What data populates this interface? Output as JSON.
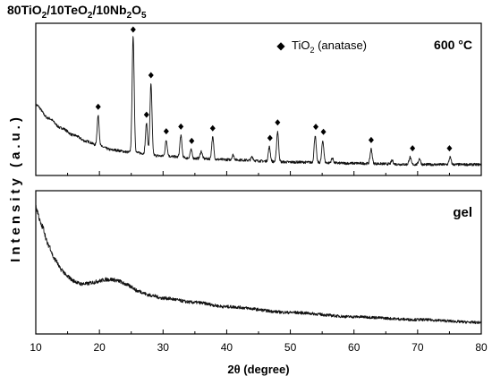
{
  "chart_data": {
    "type": "line",
    "title_parts": [
      "80TiO",
      "2",
      "/10TeO",
      "2",
      "/10Nb",
      "2",
      "O",
      "5"
    ],
    "xlabel": "2θ (degree)",
    "ylabel": "Intensity (a.u.)",
    "xlim": [
      10,
      80
    ],
    "x_ticks": [
      "10",
      "20",
      "30",
      "40",
      "50",
      "60",
      "70",
      "80"
    ],
    "grid": false,
    "panels": [
      {
        "label": "600 °C",
        "legend": {
          "marker": "◆",
          "text_parts": [
            "TiO",
            "2",
            " (anatase)"
          ],
          "position": "top-right"
        },
        "series": {
          "baseline": [
            [
              10,
              0.58
            ],
            [
              12,
              0.47
            ],
            [
              14,
              0.39
            ],
            [
              16,
              0.33
            ],
            [
              18,
              0.28
            ],
            [
              20,
              0.24
            ],
            [
              22,
              0.21
            ],
            [
              25,
              0.19
            ],
            [
              30,
              0.16
            ],
            [
              35,
              0.14
            ],
            [
              40,
              0.13
            ],
            [
              50,
              0.11
            ],
            [
              60,
              0.1
            ],
            [
              70,
              0.09
            ],
            [
              80,
              0.09
            ]
          ],
          "peaks": [
            {
              "x": 19.8,
              "height": 0.25
            },
            {
              "x": 25.3,
              "height": 0.95
            },
            {
              "x": 27.4,
              "height": 0.25
            },
            {
              "x": 28.1,
              "height": 0.58
            },
            {
              "x": 30.5,
              "height": 0.13
            },
            {
              "x": 32.8,
              "height": 0.18
            },
            {
              "x": 34.4,
              "height": 0.07
            },
            {
              "x": 36.0,
              "height": 0.06
            },
            {
              "x": 37.8,
              "height": 0.18
            },
            {
              "x": 41.0,
              "height": 0.04
            },
            {
              "x": 44.0,
              "height": 0.03
            },
            {
              "x": 46.7,
              "height": 0.12
            },
            {
              "x": 48.0,
              "height": 0.25
            },
            {
              "x": 53.9,
              "height": 0.22
            },
            {
              "x": 55.1,
              "height": 0.18
            },
            {
              "x": 56.6,
              "height": 0.04
            },
            {
              "x": 62.7,
              "height": 0.12
            },
            {
              "x": 66.0,
              "height": 0.03
            },
            {
              "x": 68.8,
              "height": 0.06
            },
            {
              "x": 70.3,
              "height": 0.05
            },
            {
              "x": 75.1,
              "height": 0.06
            }
          ],
          "ymax": 1.25
        },
        "markers_x": [
          19.8,
          25.3,
          27.4,
          28.1,
          30.5,
          32.8,
          34.5,
          37.8,
          46.8,
          48.0,
          54.0,
          55.2,
          62.7,
          69.2,
          75.0
        ]
      },
      {
        "label": "gel",
        "series": {
          "baseline": [
            [
              10,
              0.88
            ],
            [
              11,
              0.75
            ],
            [
              12,
              0.62
            ],
            [
              13,
              0.52
            ],
            [
              14,
              0.45
            ],
            [
              15,
              0.4
            ],
            [
              16,
              0.37
            ],
            [
              17,
              0.35
            ],
            [
              18,
              0.35
            ],
            [
              19,
              0.36
            ],
            [
              20,
              0.37
            ],
            [
              21,
              0.38
            ],
            [
              22,
              0.38
            ],
            [
              23,
              0.37
            ],
            [
              24,
              0.35
            ],
            [
              25,
              0.33
            ],
            [
              26,
              0.3
            ],
            [
              28,
              0.27
            ],
            [
              30,
              0.25
            ],
            [
              35,
              0.22
            ],
            [
              40,
              0.19
            ],
            [
              50,
              0.15
            ],
            [
              60,
              0.12
            ],
            [
              70,
              0.1
            ],
            [
              80,
              0.08
            ]
          ],
          "peaks": [],
          "ymax": 1.0
        }
      }
    ]
  }
}
